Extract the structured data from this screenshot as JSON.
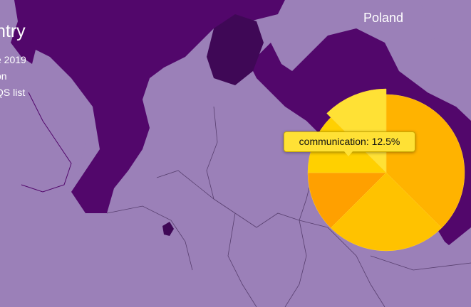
{
  "map": {
    "colors": {
      "land_light": "#9b80b8",
      "land_dark": "#52076b",
      "border": "#3b2350",
      "sea": "#52076b"
    }
  },
  "panel": {
    "title": "ntry",
    "lines": [
      "e 2019",
      "on",
      "QS list"
    ]
  },
  "labels": {
    "country": "Poland"
  },
  "tooltip": {
    "text": "communication: 12.5%"
  },
  "chart_data": {
    "type": "pie",
    "values": [
      37.5,
      25,
      12.5,
      12.5,
      12.5
    ],
    "labels": [
      "",
      "",
      "",
      "",
      "communication"
    ],
    "colors": [
      "#ffb300",
      "#ffc200",
      "#ffa000",
      "#ffd000",
      "#ffe135"
    ],
    "highlighted": "communication"
  }
}
